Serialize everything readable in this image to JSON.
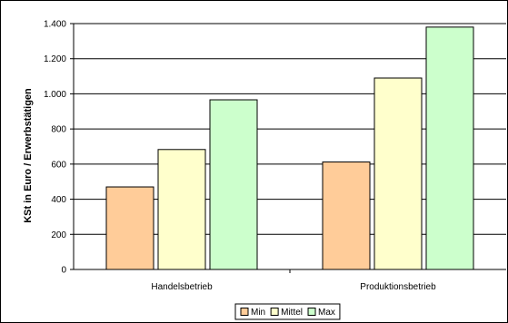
{
  "chart_data": {
    "type": "bar",
    "categories": [
      "Handelsbetrieb",
      "Produktionsbetrieb"
    ],
    "series": [
      {
        "name": "Min",
        "values": [
          470,
          612
        ],
        "color": "#FFCC99"
      },
      {
        "name": "Mittel",
        "values": [
          683,
          1090
        ],
        "color": "#FFFFCC"
      },
      {
        "name": "Max",
        "values": [
          966,
          1380
        ],
        "color": "#CCFFCC"
      }
    ],
    "ylabel": "KSt in Euro / Erwerbstätigen",
    "xlabel": "",
    "ylim": [
      0,
      1400
    ],
    "yticks": [
      0,
      200,
      400,
      600,
      800,
      1000,
      1200,
      1400
    ],
    "ytick_labels": [
      "0",
      "200",
      "400",
      "600",
      "800",
      "1.000",
      "1.200",
      "1.400"
    ],
    "grid": true,
    "legend_position": "bottom-center"
  }
}
